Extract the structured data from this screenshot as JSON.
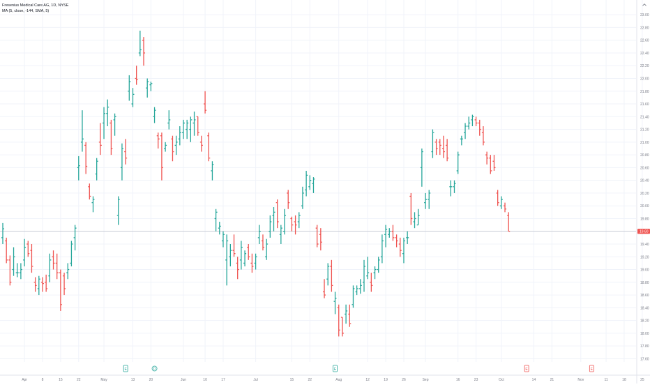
{
  "header": {
    "title": "Fresenius Medical Care AG, 1D, NYSE",
    "indicator": "MA (5, close, -144, SMA, 5)"
  },
  "icons": {
    "collapse": "chevron-up-icon"
  },
  "colors": {
    "up": "#26a69a",
    "down": "#ef5350",
    "grid": "#f0f3fa",
    "axis_text": "#787b86",
    "price_line": "#b2b5be",
    "last_label_bg": "#ef5350"
  },
  "chart_data": {
    "type": "ohlc",
    "y_ticks": [
      "17.60",
      "17.80",
      "18.00",
      "18.20",
      "18.40",
      "18.60",
      "18.80",
      "19.00",
      "19.20",
      "19.40",
      "19.60",
      "19.80",
      "20.00",
      "20.20",
      "20.40",
      "20.60",
      "20.80",
      "21.00",
      "21.20",
      "21.40",
      "21.60",
      "21.80",
      "22.00",
      "22.20",
      "22.40",
      "22.60",
      "22.80",
      "23.00"
    ],
    "ylim": [
      17.55,
      23.1
    ],
    "last_price": "19.60",
    "x_ticks": [
      {
        "label": "Apr",
        "bar": 6
      },
      {
        "label": "8",
        "bar": 11
      },
      {
        "label": "15",
        "bar": 16
      },
      {
        "label": "22",
        "bar": 21
      },
      {
        "label": "May",
        "bar": 28
      },
      {
        "label": "13",
        "bar": 36
      },
      {
        "label": "20",
        "bar": 41
      },
      {
        "label": "Jun",
        "bar": 50
      },
      {
        "label": "10",
        "bar": 56
      },
      {
        "label": "17",
        "bar": 61
      },
      {
        "label": "Jul",
        "bar": 70
      },
      {
        "label": "15",
        "bar": 80
      },
      {
        "label": "22",
        "bar": 85
      },
      {
        "label": "Aug",
        "bar": 93
      },
      {
        "label": "12",
        "bar": 101
      },
      {
        "label": "19",
        "bar": 106
      },
      {
        "label": "26",
        "bar": 111
      },
      {
        "label": "Sep",
        "bar": 117
      },
      {
        "label": "16",
        "bar": 126
      },
      {
        "label": "23",
        "bar": 131
      },
      {
        "label": "Oct",
        "bar": 138
      },
      {
        "label": "14",
        "bar": 147
      },
      {
        "label": "21",
        "bar": 152
      },
      {
        "label": "Nov",
        "bar": 160
      },
      {
        "label": "11",
        "bar": 167
      },
      {
        "label": "18",
        "bar": 172
      },
      {
        "label": "25",
        "bar": 177
      }
    ],
    "events": [
      {
        "label": "E",
        "bar": 34,
        "type": "earnings"
      },
      {
        "label": "D",
        "bar": 42,
        "type": "dividend"
      },
      {
        "label": "E",
        "bar": 92,
        "type": "earnings"
      },
      {
        "label": "E",
        "bar": 145,
        "type": "upcoming-earnings"
      },
      {
        "label": "E",
        "bar": 163,
        "type": "upcoming-earnings"
      }
    ],
    "series": [
      {
        "o": 19.5,
        "h": 19.73,
        "l": 19.4,
        "c": 19.64
      },
      {
        "o": 19.45,
        "h": 19.5,
        "l": 19.1,
        "c": 19.15
      },
      {
        "o": 19.15,
        "h": 19.22,
        "l": 18.75,
        "c": 18.8
      },
      {
        "o": 19.0,
        "h": 19.35,
        "l": 18.9,
        "c": 19.2
      },
      {
        "o": 18.95,
        "h": 19.1,
        "l": 18.88,
        "c": 18.95
      },
      {
        "o": 18.95,
        "h": 19.1,
        "l": 18.85,
        "c": 19.0
      },
      {
        "o": 19.15,
        "h": 19.48,
        "l": 19.05,
        "c": 19.35
      },
      {
        "o": 19.4,
        "h": 19.45,
        "l": 19.2,
        "c": 19.25
      },
      {
        "o": 19.3,
        "h": 19.4,
        "l": 18.95,
        "c": 19.05
      },
      {
        "o": 18.8,
        "h": 18.88,
        "l": 18.65,
        "c": 18.75
      },
      {
        "o": 18.7,
        "h": 18.9,
        "l": 18.6,
        "c": 18.85
      },
      {
        "o": 18.8,
        "h": 18.88,
        "l": 18.65,
        "c": 18.78
      },
      {
        "o": 18.8,
        "h": 18.92,
        "l": 18.65,
        "c": 18.7
      },
      {
        "o": 18.9,
        "h": 19.25,
        "l": 18.8,
        "c": 19.15
      },
      {
        "o": 19.2,
        "h": 19.3,
        "l": 19.0,
        "c": 19.1
      },
      {
        "o": 19.1,
        "h": 19.25,
        "l": 18.85,
        "c": 18.95
      },
      {
        "o": 18.95,
        "h": 19.0,
        "l": 18.35,
        "c": 18.45
      },
      {
        "o": 18.9,
        "h": 18.95,
        "l": 18.6,
        "c": 18.7
      },
      {
        "o": 18.95,
        "h": 19.1,
        "l": 18.85,
        "c": 19.0
      },
      {
        "o": 19.1,
        "h": 19.45,
        "l": 19.05,
        "c": 19.4
      },
      {
        "o": 19.5,
        "h": 19.7,
        "l": 19.3,
        "c": 19.65
      },
      {
        "o": 20.6,
        "h": 20.78,
        "l": 20.4,
        "c": 20.63
      },
      {
        "o": 21.0,
        "h": 21.5,
        "l": 20.85,
        "c": 21.05
      },
      {
        "o": 20.95,
        "h": 21.0,
        "l": 20.5,
        "c": 20.62
      },
      {
        "o": 20.3,
        "h": 20.35,
        "l": 20.1,
        "c": 20.15
      },
      {
        "o": 20.05,
        "h": 20.15,
        "l": 19.9,
        "c": 20.1
      },
      {
        "o": 20.5,
        "h": 20.75,
        "l": 20.4,
        "c": 20.7
      },
      {
        "o": 21.0,
        "h": 21.3,
        "l": 20.8,
        "c": 20.95
      },
      {
        "o": 21.3,
        "h": 21.55,
        "l": 21.05,
        "c": 21.45
      },
      {
        "o": 21.45,
        "h": 21.67,
        "l": 21.25,
        "c": 21.55
      },
      {
        "o": 21.3,
        "h": 21.35,
        "l": 20.8,
        "c": 20.9
      },
      {
        "o": 21.35,
        "h": 21.45,
        "l": 21.1,
        "c": 21.4
      },
      {
        "o": 19.85,
        "h": 20.15,
        "l": 19.7,
        "c": 20.1
      },
      {
        "o": 20.6,
        "h": 20.98,
        "l": 20.4,
        "c": 20.9
      },
      {
        "o": 20.85,
        "h": 21.05,
        "l": 20.65,
        "c": 20.75
      },
      {
        "o": 21.8,
        "h": 22.05,
        "l": 21.65,
        "c": 21.95
      },
      {
        "o": 21.6,
        "h": 21.85,
        "l": 21.55,
        "c": 21.75
      },
      {
        "o": 22.0,
        "h": 22.2,
        "l": 21.9,
        "c": 21.98
      },
      {
        "o": 22.4,
        "h": 22.75,
        "l": 22.35,
        "c": 22.45
      },
      {
        "o": 22.6,
        "h": 22.65,
        "l": 22.2,
        "c": 22.4
      },
      {
        "o": 21.85,
        "h": 22.0,
        "l": 21.7,
        "c": 21.95
      },
      {
        "o": 21.9,
        "h": 21.95,
        "l": 21.8,
        "c": 21.92
      },
      {
        "o": 21.4,
        "h": 21.55,
        "l": 21.3,
        "c": 21.5
      },
      {
        "o": 21.1,
        "h": 21.15,
        "l": 20.9,
        "c": 21.05
      },
      {
        "o": 21.1,
        "h": 21.15,
        "l": 20.4,
        "c": 20.6
      },
      {
        "o": 20.9,
        "h": 21.0,
        "l": 20.85,
        "c": 20.95
      },
      {
        "o": 21.3,
        "h": 21.5,
        "l": 21.2,
        "c": 21.35
      },
      {
        "o": 21.05,
        "h": 21.1,
        "l": 20.7,
        "c": 20.85
      },
      {
        "o": 20.95,
        "h": 21.1,
        "l": 20.8,
        "c": 21.0
      },
      {
        "o": 21.05,
        "h": 21.25,
        "l": 20.95,
        "c": 21.15
      },
      {
        "o": 21.15,
        "h": 21.35,
        "l": 21.05,
        "c": 21.3
      },
      {
        "o": 21.2,
        "h": 21.35,
        "l": 21.05,
        "c": 21.3
      },
      {
        "o": 21.2,
        "h": 21.4,
        "l": 21.0,
        "c": 21.35
      },
      {
        "o": 21.3,
        "h": 21.48,
        "l": 21.1,
        "c": 21.35
      },
      {
        "o": 21.4,
        "h": 21.4,
        "l": 21.1,
        "c": 21.15
      },
      {
        "o": 21.0,
        "h": 21.1,
        "l": 20.85,
        "c": 20.95
      },
      {
        "o": 21.6,
        "h": 21.8,
        "l": 21.45,
        "c": 21.5
      },
      {
        "o": 21.1,
        "h": 21.15,
        "l": 20.7,
        "c": 20.75
      },
      {
        "o": 20.55,
        "h": 20.7,
        "l": 20.4,
        "c": 20.65
      },
      {
        "o": 19.8,
        "h": 19.95,
        "l": 19.6,
        "c": 19.9
      },
      {
        "o": 19.65,
        "h": 19.75,
        "l": 19.55,
        "c": 19.68
      },
      {
        "o": 19.45,
        "h": 19.6,
        "l": 19.35,
        "c": 19.55
      },
      {
        "o": 19.15,
        "h": 19.55,
        "l": 18.75,
        "c": 19.45
      },
      {
        "o": 19.2,
        "h": 19.4,
        "l": 19.05,
        "c": 19.3
      },
      {
        "o": 19.3,
        "h": 19.55,
        "l": 19.2,
        "c": 19.25
      },
      {
        "o": 19.1,
        "h": 19.2,
        "l": 18.85,
        "c": 19.0
      },
      {
        "o": 19.15,
        "h": 19.45,
        "l": 19.0,
        "c": 19.35
      },
      {
        "o": 19.1,
        "h": 19.3,
        "l": 19.05,
        "c": 19.25
      },
      {
        "o": 19.35,
        "h": 19.4,
        "l": 19.15,
        "c": 19.2
      },
      {
        "o": 19.1,
        "h": 19.25,
        "l": 18.95,
        "c": 19.05
      },
      {
        "o": 19.1,
        "h": 19.25,
        "l": 19.0,
        "c": 19.2
      },
      {
        "o": 19.5,
        "h": 19.7,
        "l": 19.4,
        "c": 19.6
      },
      {
        "o": 19.45,
        "h": 19.55,
        "l": 19.3,
        "c": 19.35
      },
      {
        "o": 19.2,
        "h": 19.48,
        "l": 19.15,
        "c": 19.4
      },
      {
        "o": 19.6,
        "h": 19.85,
        "l": 19.5,
        "c": 19.75
      },
      {
        "o": 19.85,
        "h": 19.98,
        "l": 19.6,
        "c": 19.9
      },
      {
        "o": 20.05,
        "h": 20.1,
        "l": 19.65,
        "c": 19.75
      },
      {
        "o": 19.55,
        "h": 19.7,
        "l": 19.4,
        "c": 19.65
      },
      {
        "o": 19.6,
        "h": 19.95,
        "l": 19.55,
        "c": 19.85
      },
      {
        "o": 20.2,
        "h": 20.25,
        "l": 19.95,
        "c": 20.05
      },
      {
        "o": 19.8,
        "h": 19.83,
        "l": 19.6,
        "c": 19.7
      },
      {
        "o": 19.75,
        "h": 19.85,
        "l": 19.55,
        "c": 19.7
      },
      {
        "o": 19.75,
        "h": 19.9,
        "l": 19.65,
        "c": 19.85
      },
      {
        "o": 20.0,
        "h": 20.3,
        "l": 19.95,
        "c": 20.2
      },
      {
        "o": 20.25,
        "h": 20.55,
        "l": 20.15,
        "c": 20.48
      },
      {
        "o": 20.3,
        "h": 20.48,
        "l": 20.25,
        "c": 20.4
      },
      {
        "o": 20.35,
        "h": 20.45,
        "l": 20.2,
        "c": 20.42
      },
      {
        "o": 19.65,
        "h": 19.7,
        "l": 19.35,
        "c": 19.4
      },
      {
        "o": 19.55,
        "h": 19.65,
        "l": 19.3,
        "c": 19.43
      },
      {
        "o": 18.65,
        "h": 18.85,
        "l": 18.55,
        "c": 18.6
      },
      {
        "o": 18.85,
        "h": 19.1,
        "l": 18.75,
        "c": 19.05
      },
      {
        "o": 19.05,
        "h": 19.15,
        "l": 18.65,
        "c": 18.75
      },
      {
        "o": 18.5,
        "h": 18.65,
        "l": 18.3,
        "c": 18.55
      },
      {
        "o": 18.4,
        "h": 18.45,
        "l": 17.95,
        "c": 18.05
      },
      {
        "o": 18.25,
        "h": 18.25,
        "l": 17.95,
        "c": 18.0
      },
      {
        "o": 18.3,
        "h": 18.45,
        "l": 18.15,
        "c": 18.35
      },
      {
        "o": 18.3,
        "h": 18.45,
        "l": 18.1,
        "c": 18.15
      },
      {
        "o": 18.45,
        "h": 18.75,
        "l": 18.4,
        "c": 18.7
      },
      {
        "o": 18.65,
        "h": 18.75,
        "l": 18.6,
        "c": 18.7
      },
      {
        "o": 18.7,
        "h": 18.85,
        "l": 18.62,
        "c": 18.75
      },
      {
        "o": 18.8,
        "h": 19.15,
        "l": 18.65,
        "c": 19.05
      },
      {
        "o": 18.9,
        "h": 19.2,
        "l": 18.85,
        "c": 18.95
      },
      {
        "o": 18.8,
        "h": 18.95,
        "l": 18.65,
        "c": 18.75
      },
      {
        "o": 18.95,
        "h": 19.05,
        "l": 18.85,
        "c": 19.0
      },
      {
        "o": 19.0,
        "h": 19.2,
        "l": 18.95,
        "c": 19.15
      },
      {
        "o": 19.2,
        "h": 19.55,
        "l": 19.1,
        "c": 19.45
      },
      {
        "o": 19.55,
        "h": 19.7,
        "l": 19.35,
        "c": 19.63
      },
      {
        "o": 19.55,
        "h": 19.65,
        "l": 19.5,
        "c": 19.6
      },
      {
        "o": 19.6,
        "h": 19.7,
        "l": 19.45,
        "c": 19.5
      },
      {
        "o": 19.5,
        "h": 19.55,
        "l": 19.35,
        "c": 19.45
      },
      {
        "o": 19.4,
        "h": 19.5,
        "l": 19.2,
        "c": 19.3
      },
      {
        "o": 19.25,
        "h": 19.5,
        "l": 19.1,
        "c": 19.45
      },
      {
        "o": 19.5,
        "h": 19.6,
        "l": 19.4,
        "c": 19.5
      },
      {
        "o": 20.15,
        "h": 20.2,
        "l": 19.7,
        "c": 19.8
      },
      {
        "o": 19.75,
        "h": 19.9,
        "l": 19.65,
        "c": 19.8
      },
      {
        "o": 19.7,
        "h": 19.95,
        "l": 19.7,
        "c": 19.85
      },
      {
        "o": 20.6,
        "h": 20.9,
        "l": 20.3,
        "c": 20.85
      },
      {
        "o": 20.05,
        "h": 20.2,
        "l": 19.95,
        "c": 20.1
      },
      {
        "o": 20.1,
        "h": 20.25,
        "l": 19.95,
        "c": 20.2
      },
      {
        "o": 20.85,
        "h": 21.2,
        "l": 20.75,
        "c": 21.15
      },
      {
        "o": 21.0,
        "h": 21.05,
        "l": 20.8,
        "c": 20.9
      },
      {
        "o": 21.0,
        "h": 21.05,
        "l": 20.8,
        "c": 20.95
      },
      {
        "o": 20.9,
        "h": 21.1,
        "l": 20.75,
        "c": 20.85
      },
      {
        "o": 20.95,
        "h": 21.05,
        "l": 20.7,
        "c": 20.75
      },
      {
        "o": 20.3,
        "h": 20.4,
        "l": 20.15,
        "c": 20.3
      },
      {
        "o": 20.3,
        "h": 20.4,
        "l": 20.2,
        "c": 20.35
      },
      {
        "o": 20.55,
        "h": 20.85,
        "l": 20.5,
        "c": 20.8
      },
      {
        "o": 21.05,
        "h": 21.1,
        "l": 20.95,
        "c": 21.05
      },
      {
        "o": 21.15,
        "h": 21.3,
        "l": 21.05,
        "c": 21.25
      },
      {
        "o": 21.25,
        "h": 21.4,
        "l": 21.2,
        "c": 21.3
      },
      {
        "o": 21.35,
        "h": 21.43,
        "l": 21.25,
        "c": 21.4
      },
      {
        "o": 21.35,
        "h": 21.4,
        "l": 21.25,
        "c": 21.3
      },
      {
        "o": 21.3,
        "h": 21.35,
        "l": 21.1,
        "c": 21.2
      },
      {
        "o": 21.15,
        "h": 21.25,
        "l": 20.95,
        "c": 21.0
      },
      {
        "o": 20.8,
        "h": 20.85,
        "l": 20.65,
        "c": 20.75
      },
      {
        "o": 20.75,
        "h": 20.8,
        "l": 20.5,
        "c": 20.55
      },
      {
        "o": 20.7,
        "h": 20.8,
        "l": 20.55,
        "c": 20.6
      },
      {
        "o": 20.2,
        "h": 20.25,
        "l": 20.0,
        "c": 20.05
      },
      {
        "o": 20.0,
        "h": 20.15,
        "l": 19.95,
        "c": 20.1
      },
      {
        "o": 20.0,
        "h": 20.05,
        "l": 19.9,
        "c": 19.95
      },
      {
        "o": 19.85,
        "h": 19.9,
        "l": 19.6,
        "c": 19.6
      }
    ]
  }
}
